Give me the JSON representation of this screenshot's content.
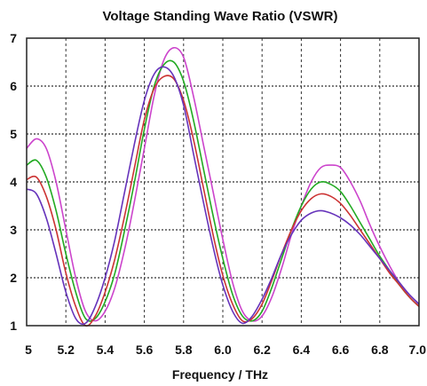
{
  "chart_data": {
    "type": "line",
    "title": "Voltage Standing Wave Ratio (VSWR)",
    "xlabel": "Frequency / THz",
    "ylabel": "",
    "xlim": [
      5.0,
      7.0
    ],
    "ylim": [
      1,
      7
    ],
    "x_ticks": [
      "5",
      "5.2",
      "5.4",
      "5.6",
      "5.8",
      "6.0",
      "6.2",
      "6.4",
      "6.6",
      "6.8",
      "7.0"
    ],
    "y_ticks": [
      "1",
      "2",
      "3",
      "4",
      "5",
      "6",
      "7"
    ],
    "grid": true,
    "series": [
      {
        "color": "#cc44cc",
        "x": [
          5.0,
          5.05,
          5.1,
          5.15,
          5.2,
          5.25,
          5.3,
          5.35,
          5.4,
          5.45,
          5.5,
          5.55,
          5.6,
          5.65,
          5.7,
          5.75,
          5.8,
          5.85,
          5.9,
          5.95,
          6.0,
          6.05,
          6.1,
          6.15,
          6.2,
          6.25,
          6.3,
          6.35,
          6.4,
          6.45,
          6.5,
          6.55,
          6.6,
          6.65,
          6.7,
          6.75,
          6.8,
          6.85,
          6.9,
          6.95,
          7.0
        ],
        "values": [
          4.7,
          4.9,
          4.7,
          4.0,
          3.0,
          2.0,
          1.3,
          1.1,
          1.3,
          1.8,
          2.6,
          3.6,
          4.7,
          5.8,
          6.55,
          6.8,
          6.6,
          5.8,
          4.8,
          3.8,
          2.8,
          1.9,
          1.3,
          1.1,
          1.2,
          1.6,
          2.2,
          2.9,
          3.5,
          4.0,
          4.3,
          4.35,
          4.3,
          4.0,
          3.6,
          3.1,
          2.65,
          2.25,
          1.9,
          1.65,
          1.45
        ]
      },
      {
        "color": "#22aa22",
        "x": [
          5.0,
          5.05,
          5.1,
          5.15,
          5.2,
          5.25,
          5.3,
          5.35,
          5.4,
          5.45,
          5.5,
          5.55,
          5.6,
          5.65,
          5.7,
          5.75,
          5.8,
          5.85,
          5.9,
          5.95,
          6.0,
          6.05,
          6.1,
          6.15,
          6.2,
          6.25,
          6.3,
          6.35,
          6.4,
          6.45,
          6.5,
          6.55,
          6.6,
          6.65,
          6.7,
          6.75,
          6.8,
          6.85,
          6.9,
          6.95,
          7.0
        ],
        "values": [
          4.35,
          4.45,
          4.1,
          3.4,
          2.5,
          1.7,
          1.15,
          1.15,
          1.5,
          2.1,
          3.0,
          4.0,
          5.1,
          6.0,
          6.45,
          6.5,
          6.1,
          5.3,
          4.3,
          3.3,
          2.4,
          1.65,
          1.2,
          1.1,
          1.3,
          1.8,
          2.4,
          3.0,
          3.5,
          3.85,
          4.0,
          3.95,
          3.8,
          3.5,
          3.15,
          2.8,
          2.45,
          2.15,
          1.85,
          1.6,
          1.4
        ]
      },
      {
        "color": "#cc3333",
        "x": [
          5.0,
          5.05,
          5.1,
          5.15,
          5.2,
          5.25,
          5.3,
          5.35,
          5.4,
          5.45,
          5.5,
          5.55,
          5.6,
          5.65,
          5.7,
          5.75,
          5.8,
          5.85,
          5.9,
          5.95,
          6.0,
          6.05,
          6.1,
          6.15,
          6.2,
          6.25,
          6.3,
          6.35,
          6.4,
          6.45,
          6.5,
          6.55,
          6.6,
          6.65,
          6.7,
          6.75,
          6.8,
          6.85,
          6.9,
          6.95,
          7.0
        ],
        "values": [
          4.05,
          4.1,
          3.7,
          3.0,
          2.1,
          1.4,
          1.0,
          1.2,
          1.7,
          2.4,
          3.3,
          4.3,
          5.3,
          5.95,
          6.2,
          6.15,
          5.7,
          4.9,
          3.9,
          2.9,
          2.05,
          1.45,
          1.1,
          1.15,
          1.45,
          1.95,
          2.5,
          3.0,
          3.4,
          3.65,
          3.75,
          3.7,
          3.55,
          3.3,
          3.0,
          2.7,
          2.4,
          2.1,
          1.85,
          1.6,
          1.4
        ]
      },
      {
        "color": "#6633bb",
        "x": [
          5.0,
          5.05,
          5.1,
          5.15,
          5.2,
          5.25,
          5.3,
          5.35,
          5.4,
          5.45,
          5.5,
          5.55,
          5.6,
          5.65,
          5.7,
          5.75,
          5.8,
          5.85,
          5.9,
          5.95,
          6.0,
          6.05,
          6.1,
          6.15,
          6.2,
          6.25,
          6.3,
          6.35,
          6.4,
          6.45,
          6.5,
          6.55,
          6.6,
          6.65,
          6.7,
          6.75,
          6.8,
          6.85,
          6.9,
          6.95,
          7.0
        ],
        "values": [
          3.85,
          3.75,
          3.25,
          2.5,
          1.7,
          1.15,
          1.05,
          1.4,
          2.0,
          2.8,
          3.8,
          4.8,
          5.7,
          6.25,
          6.4,
          6.2,
          5.6,
          4.6,
          3.6,
          2.65,
          1.85,
          1.3,
          1.05,
          1.2,
          1.55,
          2.0,
          2.5,
          2.9,
          3.2,
          3.35,
          3.4,
          3.35,
          3.25,
          3.1,
          2.9,
          2.65,
          2.4,
          2.15,
          1.9,
          1.65,
          1.45
        ]
      }
    ]
  }
}
